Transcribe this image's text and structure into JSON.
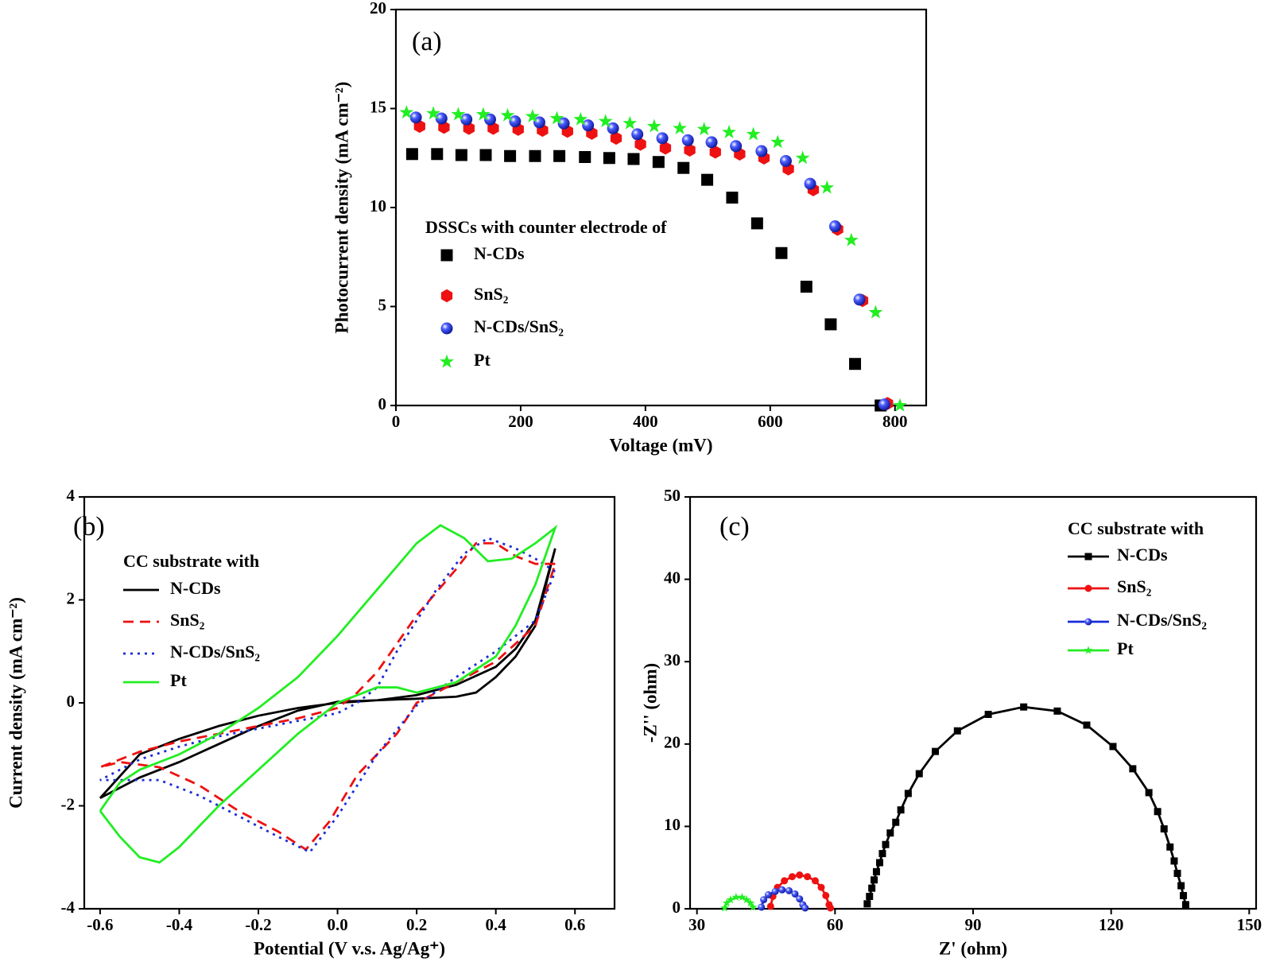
{
  "chart_data": [
    {
      "type": "scatter",
      "label": "(a)",
      "x_label": "Voltage (mV)",
      "y_label": "Photocurrent density (mA cm⁻²)",
      "legend_title": "DSSCs with counter electrode of",
      "xlim": [
        0,
        850
      ],
      "ylim": [
        0,
        20
      ],
      "xticks": [
        0,
        200,
        400,
        600,
        800
      ],
      "yticks": [
        0,
        5,
        10,
        15,
        20
      ],
      "series": [
        {
          "name": "N-CDs",
          "color": "#000000",
          "marker": "square",
          "x": [
            26,
            66,
            105,
            144,
            183,
            223,
            262,
            303,
            342,
            381,
            421,
            461,
            499,
            539,
            579,
            618,
            658,
            697,
            736,
            777
          ],
          "values": [
            12.7,
            12.7,
            12.65,
            12.65,
            12.6,
            12.6,
            12.6,
            12.55,
            12.5,
            12.45,
            12.3,
            12.0,
            11.4,
            10.5,
            9.2,
            7.7,
            6.0,
            4.1,
            2.1,
            0
          ]
        },
        {
          "name": "SnS₂",
          "color": "#ee1111",
          "marker": "hexagon",
          "x": [
            38,
            77,
            117,
            156,
            196,
            235,
            275,
            314,
            353,
            392,
            432,
            471,
            512,
            551,
            590,
            629,
            669,
            708,
            748,
            788
          ],
          "values": [
            14.1,
            14.05,
            14.0,
            14.0,
            13.95,
            13.9,
            13.85,
            13.75,
            13.5,
            13.2,
            13.0,
            12.9,
            12.8,
            12.7,
            12.5,
            11.95,
            10.9,
            8.9,
            5.3,
            0.1
          ]
        },
        {
          "name": "N-CDs/SnS₂",
          "color": "#1a2bd6",
          "marker": "sphere",
          "x": [
            32,
            73,
            113,
            151,
            191,
            230,
            269,
            308,
            348,
            387,
            427,
            468,
            506,
            545,
            586,
            625,
            664,
            704,
            743,
            783
          ],
          "values": [
            14.55,
            14.5,
            14.45,
            14.45,
            14.35,
            14.3,
            14.25,
            14.15,
            14.0,
            13.7,
            13.5,
            13.4,
            13.3,
            13.1,
            12.85,
            12.35,
            11.2,
            9.05,
            5.35,
            0.05
          ]
        },
        {
          "name": "Pt",
          "color": "#22ee22",
          "marker": "star",
          "x": [
            17,
            60,
            100,
            140,
            179,
            219,
            258,
            296,
            336,
            375,
            414,
            455,
            494,
            534,
            573,
            612,
            652,
            691,
            730,
            769,
            808
          ],
          "values": [
            14.8,
            14.75,
            14.7,
            14.7,
            14.65,
            14.6,
            14.5,
            14.45,
            14.35,
            14.25,
            14.1,
            14.0,
            13.95,
            13.8,
            13.7,
            13.3,
            12.5,
            11.0,
            8.35,
            4.7,
            0
          ]
        }
      ]
    },
    {
      "type": "line",
      "label": "(b)",
      "x_label": "Potential (V v.s. Ag/Ag⁺)",
      "y_label": "Current density (mA cm⁻²)",
      "legend_title": "CC substrate with",
      "xlim": [
        -0.64,
        0.7
      ],
      "ylim": [
        -4,
        4
      ],
      "xticks": [
        -0.6,
        -0.4,
        -0.2,
        {
          "value": 0,
          "label": "0.0"
        },
        0.2,
        0.4,
        0.6
      ],
      "yticks": [
        -4,
        -2,
        0,
        2,
        4
      ],
      "series": [
        {
          "name": "N-CDs",
          "color": "#000000",
          "dash": "solid",
          "x": [
            -0.6,
            -0.5,
            -0.4,
            -0.3,
            -0.2,
            -0.1,
            0,
            0.1,
            0.2,
            0.3,
            0.35,
            0.4,
            0.45,
            0.5,
            0.55,
            0.5,
            0.45,
            0.4,
            0.3,
            0.2,
            0.1,
            0,
            -0.1,
            -0.2,
            -0.3,
            -0.4,
            -0.5,
            -0.6
          ],
          "values": [
            -1.85,
            -1.0,
            -0.7,
            -0.45,
            -0.25,
            -0.1,
            0.0,
            0.05,
            0.08,
            0.12,
            0.2,
            0.5,
            0.9,
            1.5,
            3.0,
            1.6,
            1.05,
            0.7,
            0.35,
            0.15,
            0.05,
            0.02,
            -0.15,
            -0.45,
            -0.8,
            -1.15,
            -1.45,
            -1.85
          ]
        },
        {
          "name": "SnS₂",
          "color": "#ee1111",
          "dash": "dashed",
          "x": [
            0.55,
            0.5,
            0.45,
            0.4,
            0.35,
            0.3,
            0.2,
            0.1,
            0.05,
            0,
            -0.1,
            -0.2,
            -0.3,
            -0.4,
            -0.5,
            -0.6,
            -0.55,
            -0.45,
            -0.35,
            -0.25,
            -0.15,
            -0.08,
            -0.02,
            0.05,
            0.15,
            0.2,
            0.3,
            0.4,
            0.5,
            0.55
          ],
          "values": [
            2.7,
            2.7,
            2.85,
            3.1,
            3.1,
            2.6,
            1.7,
            0.6,
            0.2,
            -0.1,
            -0.3,
            -0.45,
            -0.6,
            -0.75,
            -0.95,
            -1.25,
            -1.15,
            -1.25,
            -1.6,
            -2.1,
            -2.5,
            -2.85,
            -2.3,
            -1.4,
            -0.6,
            0.0,
            0.4,
            0.8,
            1.5,
            2.7
          ]
        },
        {
          "name": "N-CDs/SnS₂",
          "color": "#1a2bd6",
          "dash": "dotted",
          "x": [
            0.55,
            0.5,
            0.45,
            0.38,
            0.32,
            0.25,
            0.15,
            0.1,
            0.05,
            0,
            -0.1,
            -0.2,
            -0.3,
            -0.4,
            -0.5,
            -0.6,
            -0.55,
            -0.45,
            -0.35,
            -0.25,
            -0.15,
            -0.07,
            0,
            0.1,
            0.2,
            0.3,
            0.4,
            0.5,
            0.55
          ],
          "values": [
            2.55,
            2.8,
            3.0,
            3.2,
            2.9,
            2.2,
            1.0,
            0.3,
            0.0,
            -0.2,
            -0.35,
            -0.5,
            -0.65,
            -0.85,
            -1.1,
            -1.5,
            -1.5,
            -1.5,
            -1.8,
            -2.2,
            -2.6,
            -2.9,
            -2.2,
            -1.0,
            -0.05,
            0.5,
            1.0,
            1.6,
            2.55
          ]
        },
        {
          "name": "Pt",
          "color": "#22ee22",
          "dash": "solid",
          "x": [
            -0.6,
            -0.55,
            -0.5,
            -0.4,
            -0.3,
            -0.2,
            -0.1,
            0,
            0.1,
            0.2,
            0.26,
            0.32,
            0.38,
            0.44,
            0.5,
            0.55,
            0.5,
            0.45,
            0.4,
            0.3,
            0.2,
            0.15,
            0.1,
            0,
            -0.1,
            -0.2,
            -0.3,
            -0.4,
            -0.45,
            -0.5,
            -0.55,
            -0.6
          ],
          "values": [
            -2.1,
            -1.55,
            -1.3,
            -1.0,
            -0.6,
            -0.1,
            0.5,
            1.3,
            2.2,
            3.1,
            3.45,
            3.2,
            2.75,
            2.8,
            3.1,
            3.4,
            2.3,
            1.5,
            0.9,
            0.4,
            0.2,
            0.3,
            0.3,
            0.0,
            -0.6,
            -1.3,
            -2.0,
            -2.8,
            -3.1,
            -3.0,
            -2.6,
            -2.1
          ]
        }
      ]
    },
    {
      "type": "line",
      "label": "(c)",
      "x_label": "Z' (ohm)",
      "y_label": "-Z'' (ohm)",
      "legend_title": "CC substrate with",
      "xlim": [
        28.5,
        151.5
      ],
      "ylim": [
        0,
        50
      ],
      "xticks": [
        30,
        60,
        90,
        120,
        150
      ],
      "yticks": [
        0,
        10,
        20,
        30,
        40,
        50
      ],
      "series": [
        {
          "name": "N-CDs",
          "color": "#000000",
          "marker": "square",
          "dash": "solid",
          "x": [
            67,
            67.5,
            68,
            68.5,
            69,
            69.7,
            70.3,
            71,
            72,
            73.2,
            74.3,
            75.9,
            78.3,
            81.8,
            86.6,
            93.3,
            101,
            108.3,
            114.7,
            120.4,
            124.7,
            128.2,
            130.1,
            131.5,
            132.8,
            133.7,
            134.4,
            135.2,
            135.7,
            136.2
          ],
          "values": [
            0.6,
            1.5,
            2.5,
            3.5,
            4.5,
            5.6,
            6.7,
            7.8,
            9.2,
            10.5,
            12,
            14,
            16.4,
            19.1,
            21.6,
            23.6,
            24.5,
            24,
            22.3,
            19.7,
            17,
            14.1,
            11.8,
            9.7,
            7.5,
            5.8,
            4.3,
            2.8,
            1.6,
            0.5
          ]
        },
        {
          "name": "SnS₂",
          "color": "#ee1111",
          "marker": "circle",
          "dash": "solid",
          "x": [
            46,
            46.5,
            47.5,
            49,
            50.7,
            52.3,
            54,
            55.7,
            57,
            58,
            58.7,
            59
          ],
          "values": [
            0.3,
            1.5,
            2.6,
            3.4,
            3.9,
            4.1,
            3.9,
            3.4,
            2.6,
            1.6,
            0.5,
            0.1
          ]
        },
        {
          "name": "N-CDs/SnS₂",
          "color": "#1a2bd6",
          "marker": "sphere",
          "dash": "solid",
          "x": [
            44,
            44.5,
            45.5,
            47,
            48.5,
            50,
            51.3,
            52.3,
            53,
            53.5
          ],
          "values": [
            0.2,
            1.1,
            1.7,
            2.1,
            2.3,
            2.2,
            1.8,
            1.2,
            0.5,
            0.1
          ]
        },
        {
          "name": "Pt",
          "color": "#22ee22",
          "marker": "star",
          "dash": "solid",
          "x": [
            36,
            36.5,
            37.3,
            38.5,
            39.8,
            40.8,
            41.6,
            42.2
          ],
          "values": [
            0.1,
            0.7,
            1.1,
            1.4,
            1.4,
            1.1,
            0.7,
            0.2
          ]
        }
      ]
    }
  ]
}
